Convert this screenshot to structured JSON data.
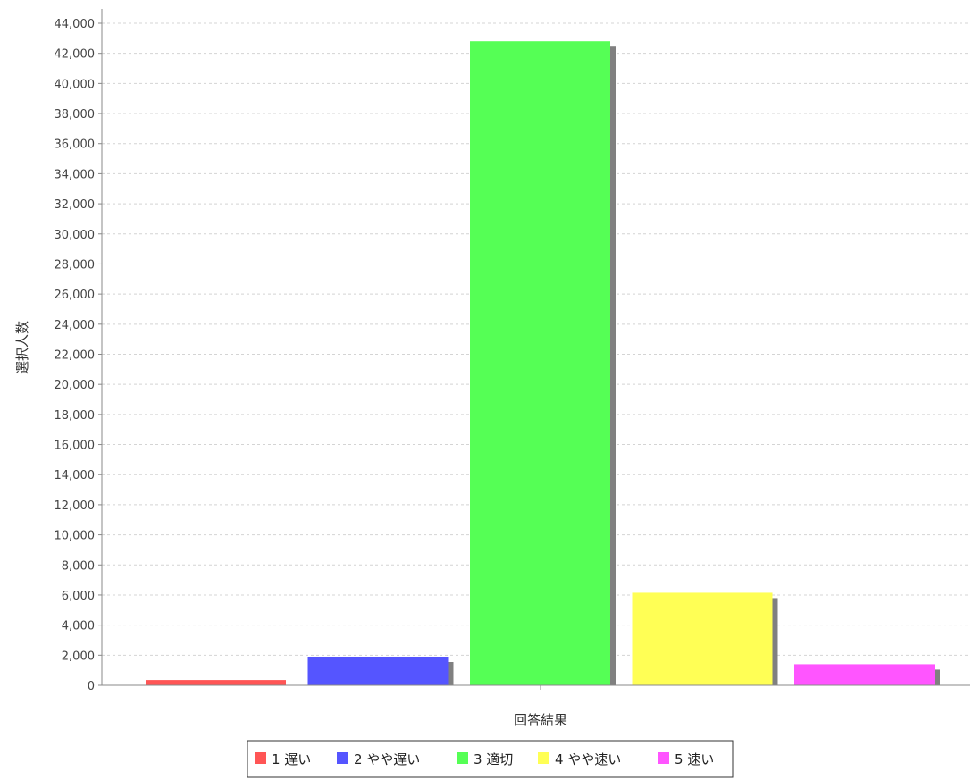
{
  "chart_data": {
    "type": "bar",
    "title": "",
    "xlabel": "回答結果",
    "ylabel": "選択人数",
    "ylim": [
      0,
      44000
    ],
    "y_ticks": [
      0,
      2000,
      4000,
      6000,
      8000,
      10000,
      12000,
      14000,
      16000,
      18000,
      20000,
      22000,
      24000,
      26000,
      28000,
      30000,
      32000,
      34000,
      36000,
      38000,
      40000,
      42000,
      44000
    ],
    "grid": true,
    "legend_position": "bottom",
    "series": [
      {
        "name": "1 遅い",
        "value": 350,
        "color": "#ff5555"
      },
      {
        "name": "2 やや遅い",
        "value": 1900,
        "color": "#5555ff"
      },
      {
        "name": "3 適切",
        "value": 42800,
        "color": "#55ff55"
      },
      {
        "name": "4 やや速い",
        "value": 6150,
        "color": "#ffff55"
      },
      {
        "name": "5 速い",
        "value": 1400,
        "color": "#ff55ff"
      }
    ]
  }
}
